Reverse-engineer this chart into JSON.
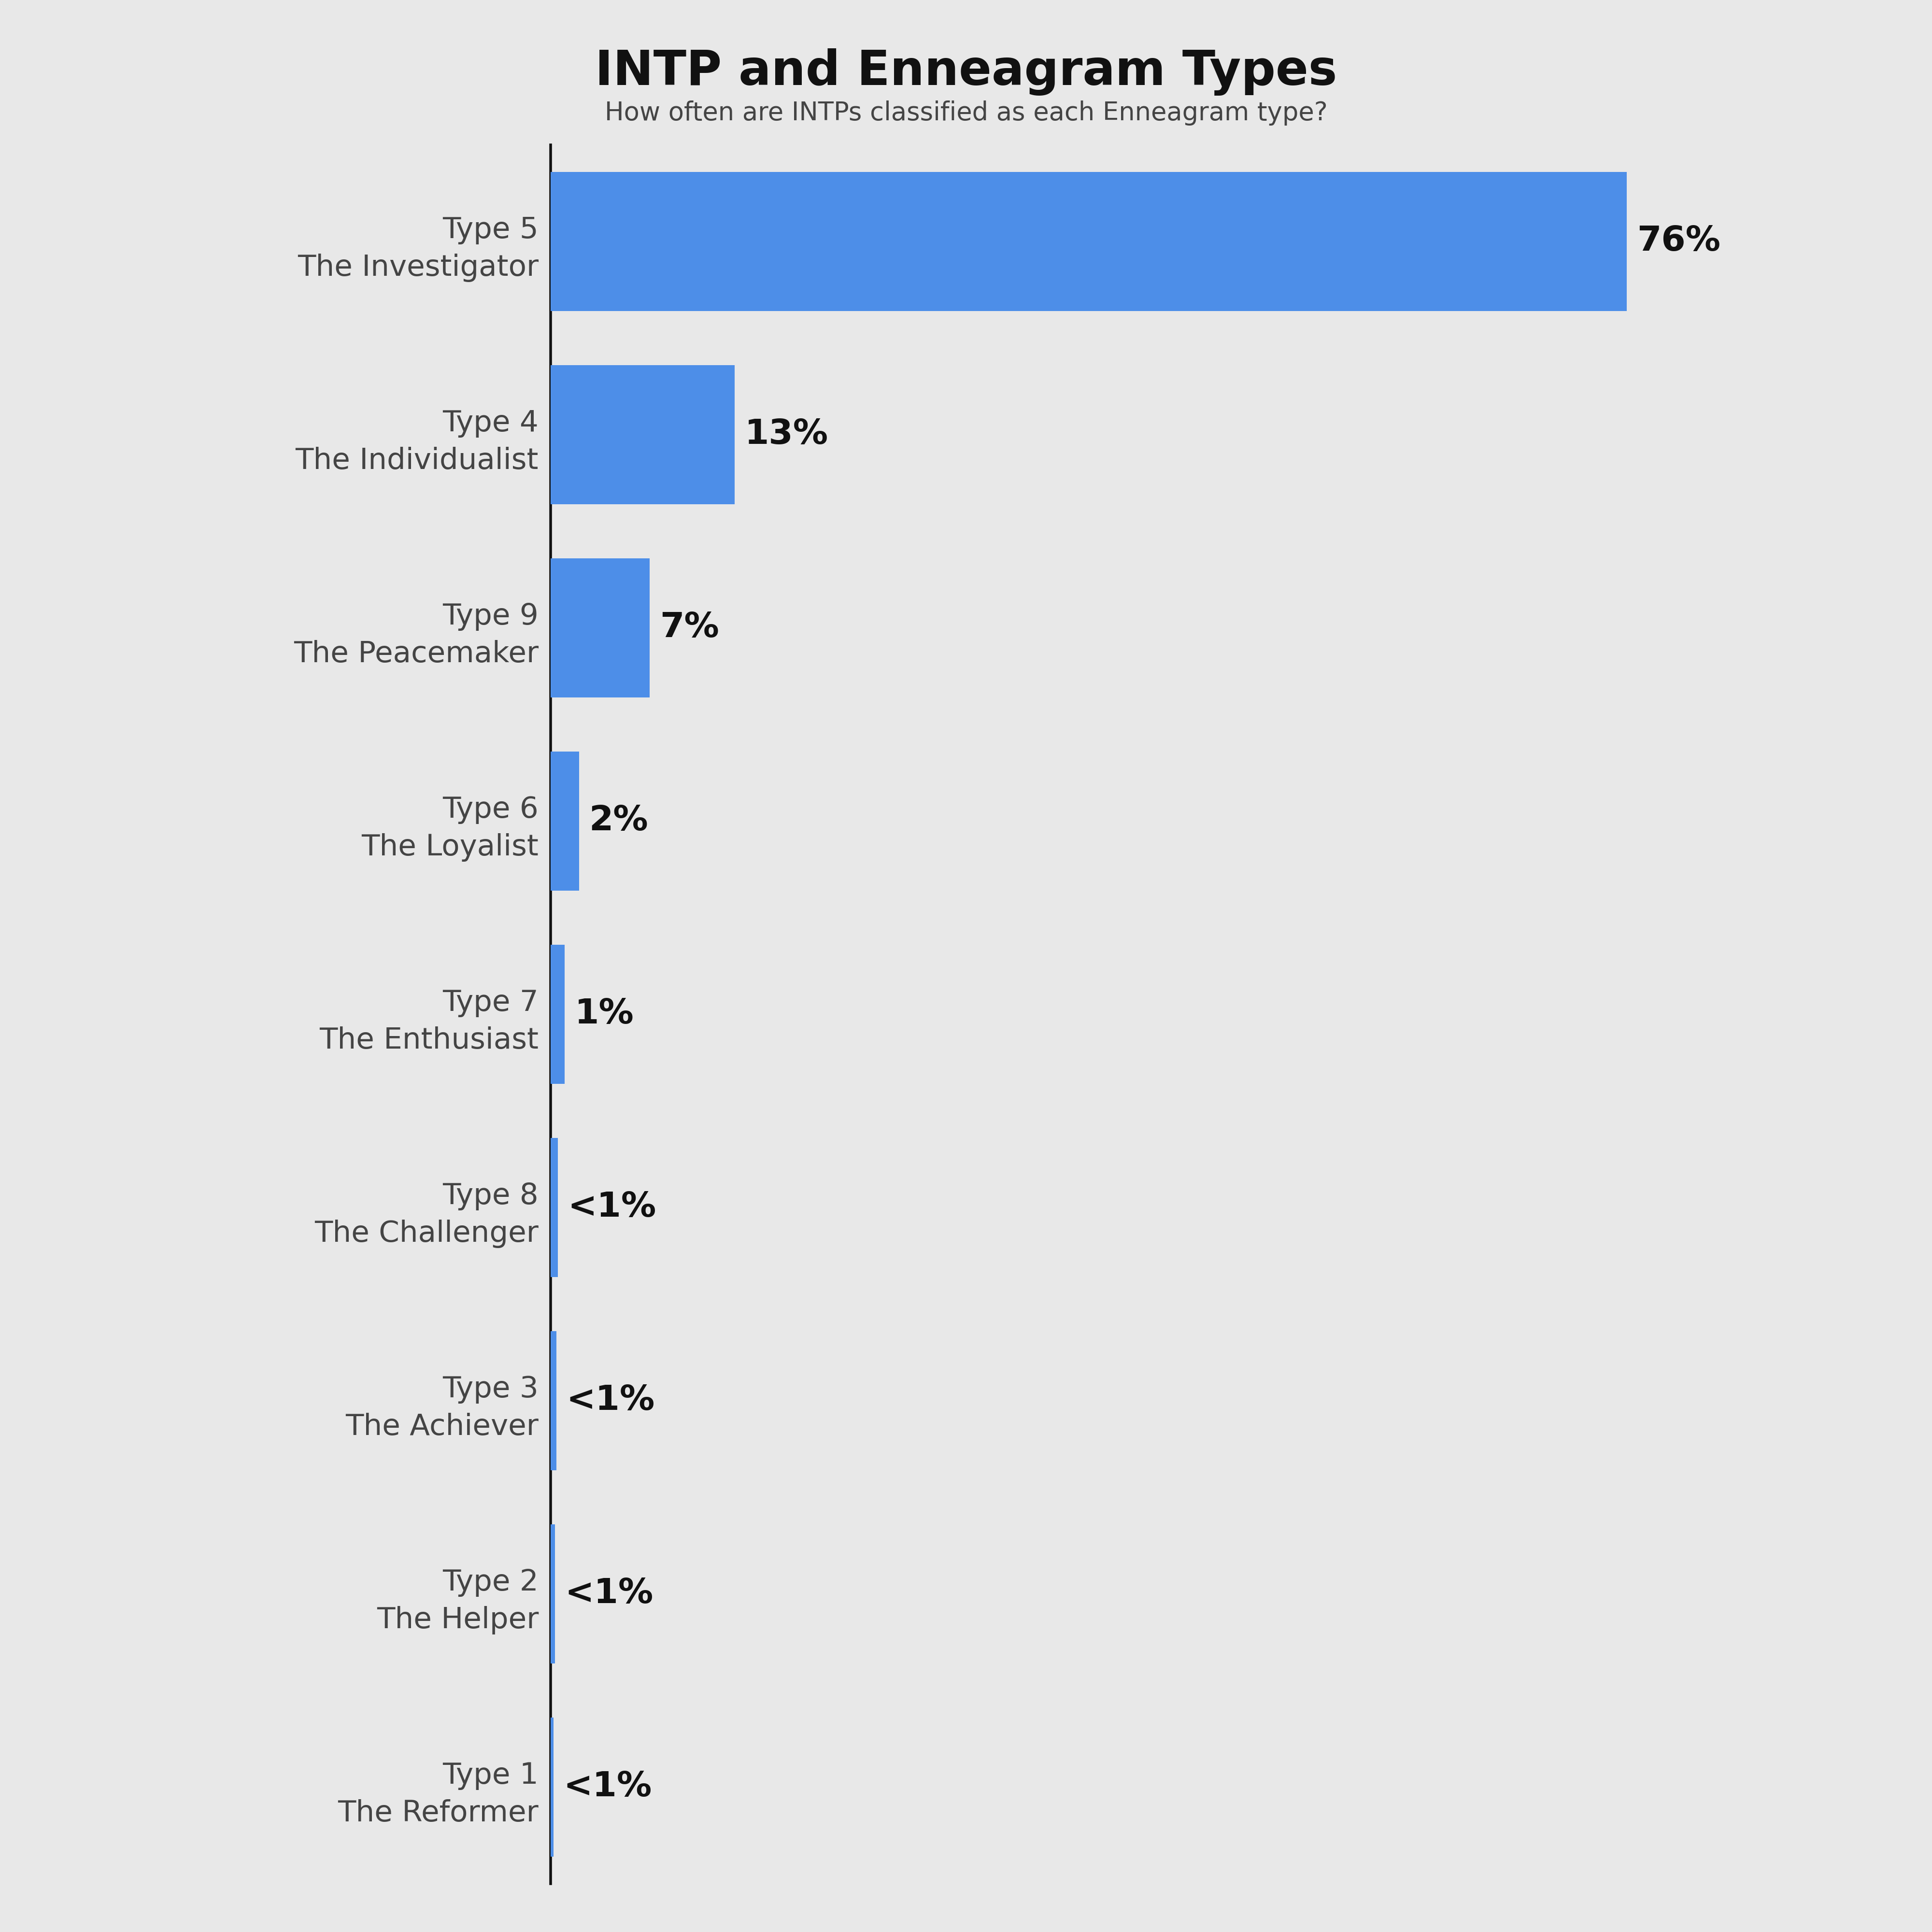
{
  "title": "INTP and Enneagram Types",
  "subtitle": "How often are INTPs classified as each Enneagram type?",
  "categories": [
    "Type 5\nThe Investigator",
    "Type 4\nThe Individualist",
    "Type 9\nThe Peacemaker",
    "Type 6\nThe Loyalist",
    "Type 7\nThe Enthusiast",
    "Type 8\nThe Challenger",
    "Type 3\nThe Achiever",
    "Type 2\nThe Helper",
    "Type 1\nThe Reformer"
  ],
  "values": [
    76,
    13,
    7,
    2,
    1,
    0.5,
    0.4,
    0.3,
    0.2
  ],
  "labels": [
    "76%",
    "13%",
    "7%",
    "2%",
    "1%",
    "<1%",
    "<1%",
    "<1%",
    "<1%"
  ],
  "bar_color": "#4d8ee8",
  "background_color": "#e8e8e8",
  "title_color": "#111111",
  "subtitle_color": "#444444",
  "label_color": "#111111",
  "ytick_color": "#444444",
  "xlim": [
    0,
    88
  ],
  "title_fontsize": 72,
  "subtitle_fontsize": 38,
  "label_fontsize": 52,
  "ytick_fontsize": 44,
  "bar_height": 0.72,
  "grid_color": "#c8cfe0",
  "grid_linewidth": 1.5,
  "spine_color": "#111111",
  "spine_linewidth": 4
}
